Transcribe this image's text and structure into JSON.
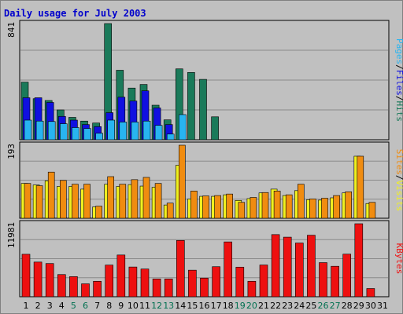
{
  "title": "Daily usage for July 2003",
  "colors": {
    "hits": "#1a7a5a",
    "files": "#1010e0",
    "pages": "#28b4f0",
    "visits": "#f0f020",
    "sites": "#f08c10",
    "kbytes": "#ee1010",
    "weekday": "#000000",
    "weekend": "#007050"
  },
  "chart_data": [
    {
      "type": "bar",
      "name": "hits-files-pages",
      "categories": [
        "1",
        "2",
        "3",
        "4",
        "5",
        "6",
        "7",
        "8",
        "9",
        "10",
        "11",
        "12",
        "13",
        "14",
        "15",
        "16",
        "17",
        "18",
        "19",
        "20",
        "21",
        "22",
        "23",
        "24",
        "25",
        "26",
        "27",
        "28",
        "29",
        "30",
        "31"
      ],
      "weekend_days": [
        "5",
        "6",
        "12",
        "13",
        "19",
        "20",
        "26",
        "27"
      ],
      "ymax_label": "841",
      "ylim": [
        0,
        841
      ],
      "series_labels": [
        "Pages",
        "Files",
        "Hits"
      ],
      "series": [
        {
          "name": "Hits",
          "values": [
            417,
            297,
            284,
            216,
            162,
            135,
            121,
            841,
            503,
            374,
            400,
            250,
            144,
            513,
            487,
            437,
            166,
            0,
            0,
            0,
            0,
            0,
            0,
            0,
            0,
            0,
            0,
            0,
            0,
            0,
            0
          ]
        },
        {
          "name": "Files",
          "values": [
            304,
            304,
            270,
            169,
            142,
            110,
            95,
            196,
            308,
            280,
            354,
            230,
            110,
            0,
            0,
            0,
            0,
            0,
            0,
            0,
            0,
            0,
            0,
            0,
            0,
            0,
            0,
            0,
            0,
            0,
            0
          ]
        },
        {
          "name": "Pages",
          "values": [
            142,
            135,
            132,
            116,
            88,
            81,
            47,
            142,
            128,
            128,
            135,
            104,
            41,
            182,
            0,
            0,
            0,
            0,
            0,
            0,
            0,
            0,
            0,
            0,
            0,
            0,
            0,
            0,
            0,
            0,
            0
          ]
        }
      ],
      "extra": {
        "hits_tail": [
          0,
          0,
          0,
          0,
          0,
          0,
          0,
          0,
          0,
          0,
          0,
          0,
          0,
          0,
          0,
          0,
          0,
          0,
          0,
          0,
          0,
          0,
          0,
          0,
          0,
          0,
          0,
          0,
          0,
          0,
          0
        ]
      }
    },
    {
      "type": "bar",
      "name": "visits-sites",
      "categories": [
        "1",
        "2",
        "3",
        "4",
        "5",
        "6",
        "7",
        "8",
        "9",
        "10",
        "11",
        "12",
        "13",
        "14",
        "15",
        "16",
        "17",
        "18",
        "19",
        "20",
        "21",
        "22",
        "23",
        "24",
        "25",
        "26",
        "27",
        "28",
        "29",
        "30",
        "31"
      ],
      "ymax_label": "193",
      "ylim": [
        0,
        193
      ],
      "series_labels": [
        "Sites",
        "Visits"
      ],
      "series": [
        {
          "name": "Visits",
          "values": [
            92,
            88,
            99,
            84,
            84,
            77,
            30,
            90,
            84,
            89,
            85,
            82,
            35,
            140,
            51,
            58,
            58,
            62,
            47,
            52,
            67,
            77,
            60,
            73,
            49,
            48,
            54,
            67,
            164,
            39,
            0
          ]
        },
        {
          "name": "Sites",
          "values": [
            92,
            86,
            122,
            100,
            90,
            90,
            32,
            110,
            90,
            102,
            108,
            92,
            40,
            193,
            72,
            59,
            60,
            64,
            42,
            55,
            68,
            72,
            62,
            90,
            51,
            53,
            60,
            70,
            164,
            42,
            0
          ]
        }
      ]
    },
    {
      "type": "bar",
      "name": "kbytes",
      "categories": [
        "1",
        "2",
        "3",
        "4",
        "5",
        "6",
        "7",
        "8",
        "9",
        "10",
        "11",
        "12",
        "13",
        "14",
        "15",
        "16",
        "17",
        "18",
        "19",
        "20",
        "21",
        "22",
        "23",
        "24",
        "25",
        "26",
        "27",
        "28",
        "29",
        "30",
        "31"
      ],
      "ymax_label": "11981",
      "ylim": [
        0,
        11981
      ],
      "series_labels": [
        "KBytes"
      ],
      "series": [
        {
          "name": "KBytes",
          "values": [
            6970,
            5690,
            5450,
            3640,
            3300,
            2120,
            2540,
            5200,
            6850,
            4880,
            4550,
            2920,
            2920,
            9240,
            4360,
            3060,
            4930,
            9000,
            4860,
            2540,
            5210,
            10200,
            9780,
            8820,
            10100,
            5600,
            5000,
            6990,
            11981,
            1350,
            0
          ]
        }
      ]
    }
  ]
}
